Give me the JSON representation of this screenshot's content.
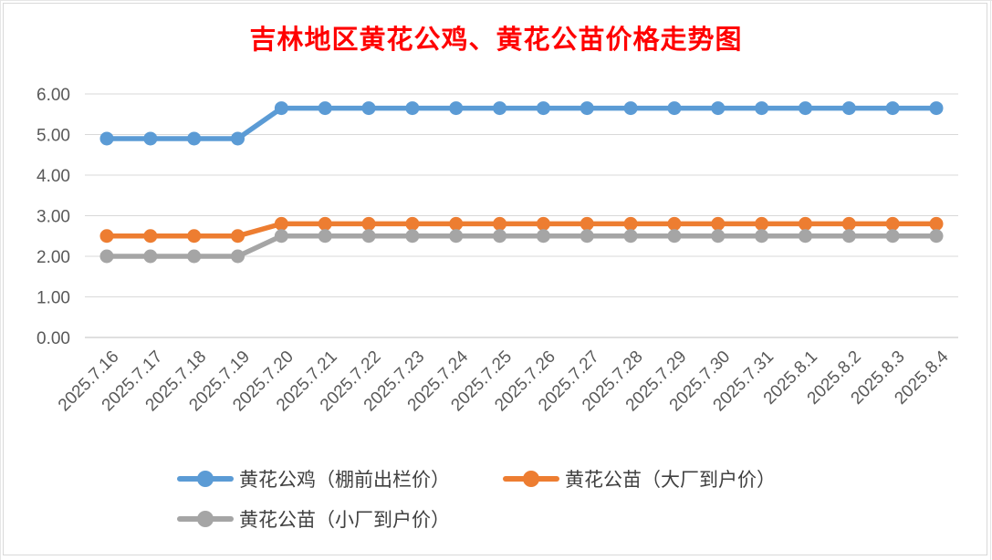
{
  "chart_data": {
    "type": "line",
    "title": "吉林地区黄花公鸡、黄花公苗价格走势图",
    "xlabel": "",
    "ylabel": "",
    "ylim": [
      0,
      6
    ],
    "yticks": [
      "0.00",
      "1.00",
      "2.00",
      "3.00",
      "4.00",
      "5.00",
      "6.00"
    ],
    "grid": true,
    "legend_position": "bottom",
    "categories": [
      "2025.7.16",
      "2025.7.17",
      "2025.7.18",
      "2025.7.19",
      "2025.7.20",
      "2025.7.21",
      "2025.7.22",
      "2025.7.23",
      "2025.7.24",
      "2025.7.25",
      "2025.7.26",
      "2025.7.27",
      "2025.7.28",
      "2025.7.29",
      "2025.7.30",
      "2025.7.31",
      "2025.8.1",
      "2025.8.2",
      "2025.8.3",
      "2025.8.4"
    ],
    "series": [
      {
        "name": "黄花公鸡（棚前出栏价）",
        "color": "#5b9bd5",
        "values": [
          4.9,
          4.9,
          4.9,
          4.9,
          5.65,
          5.65,
          5.65,
          5.65,
          5.65,
          5.65,
          5.65,
          5.65,
          5.65,
          5.65,
          5.65,
          5.65,
          5.65,
          5.65,
          5.65,
          5.65
        ]
      },
      {
        "name": "黄花公苗（大厂到户价）",
        "color": "#ed7d31",
        "values": [
          2.5,
          2.5,
          2.5,
          2.5,
          2.8,
          2.8,
          2.8,
          2.8,
          2.8,
          2.8,
          2.8,
          2.8,
          2.8,
          2.8,
          2.8,
          2.8,
          2.8,
          2.8,
          2.8,
          2.8
        ]
      },
      {
        "name": "黄花公苗（小厂到户价）",
        "color": "#a5a5a5",
        "values": [
          2.0,
          2.0,
          2.0,
          2.0,
          2.5,
          2.5,
          2.5,
          2.5,
          2.5,
          2.5,
          2.5,
          2.5,
          2.5,
          2.5,
          2.5,
          2.5,
          2.5,
          2.5,
          2.5,
          2.5
        ]
      }
    ]
  }
}
